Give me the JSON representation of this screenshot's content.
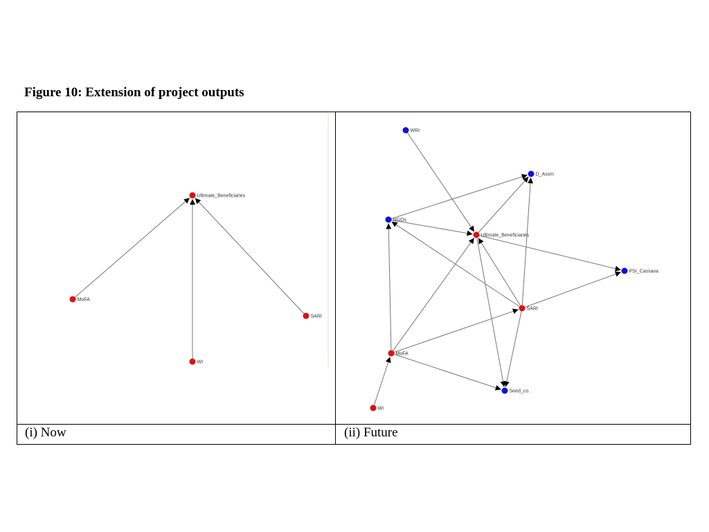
{
  "figure": {
    "title": "Figure 10: Extension of project outputs",
    "caption_left": "(i) Now",
    "caption_right": "(ii) Future"
  },
  "colors": {
    "node_red": "#dd1111",
    "node_blue": "#1111dd",
    "edge": "#777777",
    "border": "#000000"
  },
  "network_now": {
    "nodes": [
      {
        "id": "Ultimate_Beneficiaries",
        "label": "Ultimate_Beneficiaries",
        "color": "red"
      },
      {
        "id": "MoFA",
        "label": "MoFA",
        "color": "red"
      },
      {
        "id": "SARI",
        "label": "SARI",
        "color": "red"
      },
      {
        "id": "WI",
        "label": "WI",
        "color": "red"
      }
    ],
    "edges": [
      {
        "from": "MoFA",
        "to": "Ultimate_Beneficiaries"
      },
      {
        "from": "WI",
        "to": "Ultimate_Beneficiaries"
      },
      {
        "from": "SARI",
        "to": "Ultimate_Beneficiaries"
      }
    ]
  },
  "network_future": {
    "nodes": [
      {
        "id": "WRI",
        "label": "WRI",
        "color": "blue"
      },
      {
        "id": "D_Assm",
        "label": "D_Assm",
        "color": "blue"
      },
      {
        "id": "NGOs",
        "label": "NGOs",
        "color": "blue"
      },
      {
        "id": "Ultimate_Beneficiaries",
        "label": "Ultimate_Beneficiaries",
        "color": "red"
      },
      {
        "id": "PSI_Cassava",
        "label": "PSI_Cassava",
        "color": "blue"
      },
      {
        "id": "SARI",
        "label": "SARI",
        "color": "red"
      },
      {
        "id": "MoFA",
        "label": "MoFA",
        "color": "red"
      },
      {
        "id": "Seed_co",
        "label": "Seed_co.",
        "color": "blue"
      },
      {
        "id": "WI",
        "label": "WI",
        "color": "red"
      }
    ],
    "edges": [
      {
        "from": "WRI",
        "to": "Ultimate_Beneficiaries"
      },
      {
        "from": "NGOs",
        "to": "D_Assm"
      },
      {
        "from": "NGOs",
        "to": "Ultimate_Beneficiaries"
      },
      {
        "from": "Ultimate_Beneficiaries",
        "to": "D_Assm"
      },
      {
        "from": "Ultimate_Beneficiaries",
        "to": "PSI_Cassava"
      },
      {
        "from": "Ultimate_Beneficiaries",
        "to": "Seed_co"
      },
      {
        "from": "SARI",
        "to": "D_Assm"
      },
      {
        "from": "SARI",
        "to": "NGOs"
      },
      {
        "from": "SARI",
        "to": "Ultimate_Beneficiaries"
      },
      {
        "from": "SARI",
        "to": "PSI_Cassava"
      },
      {
        "from": "SARI",
        "to": "Seed_co"
      },
      {
        "from": "MoFA",
        "to": "NGOs"
      },
      {
        "from": "MoFA",
        "to": "Ultimate_Beneficiaries"
      },
      {
        "from": "MoFA",
        "to": "SARI"
      },
      {
        "from": "MoFA",
        "to": "Seed_co"
      },
      {
        "from": "WI",
        "to": "MoFA"
      }
    ]
  }
}
